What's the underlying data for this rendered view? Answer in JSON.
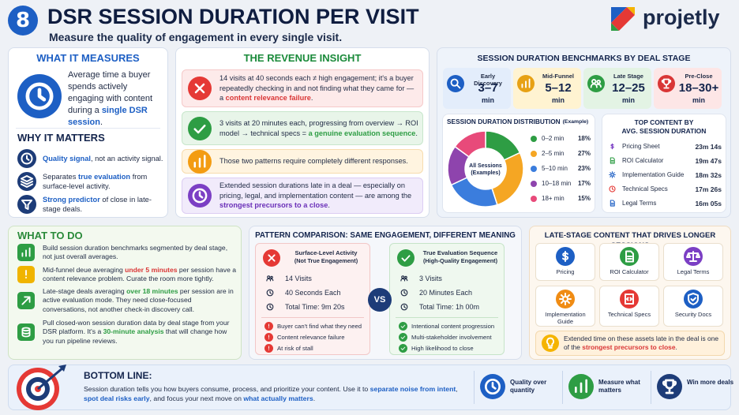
{
  "header": {
    "number": "8",
    "title": "DSR SESSION DURATION PER VISIT",
    "subtitle": "Measure the quality of engagement in every single visit.",
    "brand": "projetly"
  },
  "what_it_measures": {
    "title": "WHAT IT MEASURES",
    "text": [
      "Average time a buyer spends actively engaging with content during a ",
      {
        "em": "single DSR session"
      },
      "."
    ]
  },
  "why_it_matters": {
    "title": "WHY IT MATTERS",
    "items": [
      [
        {
          "em": "Quality signal"
        },
        ", not an activity signal."
      ],
      [
        "Separates ",
        {
          "em": "true evaluation"
        },
        " from surface-level activity."
      ],
      [
        {
          "em": "Strong predictor"
        },
        " of close in late-stage deals."
      ]
    ]
  },
  "revenue_insight": {
    "title": "THE REVENUE INSIGHT",
    "items": [
      [
        "14 visits at 40 seconds each ≠ high engagement; it's a buyer repeatedly checking in and not finding what they came for — a ",
        {
          "em": "content relevance failure"
        },
        "."
      ],
      [
        "3 visits at 20 minutes each, progressing from overview → ROI model → technical specs = ",
        {
          "em": "a genuine evaluation sequence"
        },
        "."
      ],
      [
        "Those two patterns require completely different responses."
      ],
      [
        "Extended session durations late in a deal — especially on pricing, legal, and implementation content — are among the ",
        {
          "em": "strongest precursors to a close"
        },
        "."
      ]
    ]
  },
  "benchmarks": {
    "title": "SESSION DURATION BENCHMARKS BY DEAL STAGE",
    "stages": [
      {
        "name": "Early Discovery",
        "range": "3–7",
        "unit": "min"
      },
      {
        "name": "Mid-Funnel",
        "range": "5–12",
        "unit": "min"
      },
      {
        "name": "Late Stage",
        "range": "12–25",
        "unit": "min"
      },
      {
        "name": "Pre-Close",
        "range": "18–30+",
        "unit": "min"
      }
    ]
  },
  "distribution": {
    "type": "pie",
    "title": "SESSION DURATION DISTRIBUTION",
    "note": "(Example)",
    "center": [
      "All Sessions",
      "(Examples)"
    ],
    "categories": [
      "0–2 min",
      "2–5 min",
      "5–10 min",
      "10–18 min",
      "18+ min"
    ],
    "values": [
      18,
      27,
      23,
      17,
      15
    ],
    "value_labels": [
      "18%",
      "27%",
      "23%",
      "17%",
      "15%"
    ],
    "colors": [
      "#2e9d44",
      "#f5a623",
      "#3b7ddd",
      "#8e44ad",
      "#e84a7a"
    ]
  },
  "top_content": {
    "title": "TOP CONTENT BY",
    "subtitle": "AVG. SESSION DURATION",
    "items": [
      {
        "name": "Pricing Sheet",
        "time": "23m 14s"
      },
      {
        "name": "ROI Calculator",
        "time": "19m 47s"
      },
      {
        "name": "Implementation Guide",
        "time": "18m 32s"
      },
      {
        "name": "Technical Specs",
        "time": "17m 26s"
      },
      {
        "name": "Legal Terms",
        "time": "16m 05s"
      }
    ]
  },
  "what_to_do": {
    "title": "WHAT TO DO",
    "items": [
      [
        "Build session duration benchmarks segmented by deal stage, not just overall averages."
      ],
      [
        "Mid-funnel deue averaging ",
        {
          "em": "under 5 minutes"
        },
        " per session have a content relevance problem. Curate the room more tightly."
      ],
      [
        "Late-stage deals averaging ",
        {
          "em": "over 18 minutes"
        },
        " per session are in active evaluation mode. They need close-focused conversations, not another check-in discovery call."
      ],
      [
        "Pull closed-won session duration data by deal stage from your DSR platform. It's a ",
        {
          "em": "30-minute analysis"
        },
        " that will change how you run pipeline reviews."
      ]
    ]
  },
  "pattern": {
    "title": "PATTERN COMPARISON: SAME ENGAGEMENT, DIFFERENT MEANING",
    "vs": "VS",
    "cards": [
      {
        "title": "Surface-Level Activity",
        "subtitle": "(Not True Engagement)",
        "stats": [
          "14 Visits",
          "40 Seconds Each",
          "Total Time: 9m 20s"
        ],
        "signals": [
          "Buyer can't find what they need",
          "Content relevance failure",
          "At risk of stall"
        ]
      },
      {
        "title": "True Evaluation Sequence",
        "subtitle": "(High-Quality Engagement)",
        "stats": [
          "3 Visits",
          "20 Minutes Each",
          "Total Time: 1h 00m"
        ],
        "signals": [
          "Intentional content progression",
          "Multi-stakeholder involvement",
          "High likelihood to close"
        ]
      }
    ]
  },
  "late_stage": {
    "title": "LATE-STAGE CONTENT THAT DRIVES LONGER SESSIONS",
    "items": [
      "Pricing",
      "ROI Calculator",
      "Legal Terms",
      "Implementation Guide",
      "Technical Specs",
      "Security Docs"
    ],
    "note": [
      "Extended time on these assets late in the deal is one of the ",
      {
        "em": "strongest precursors to close"
      },
      "."
    ]
  },
  "bottom_line": {
    "title": "BOTTOM LINE:",
    "text": [
      "Session duration tells you how buyers consume, process, and prioritize your content. Use it to ",
      {
        "em": "separate noise from intent"
      },
      ", ",
      {
        "em": "spot deal risks early"
      },
      ", and focus your next move on ",
      {
        "em": "what actually matters"
      },
      "."
    ],
    "badges": [
      "Quality over quantity",
      "Measure what matters",
      "Win more deals"
    ]
  }
}
